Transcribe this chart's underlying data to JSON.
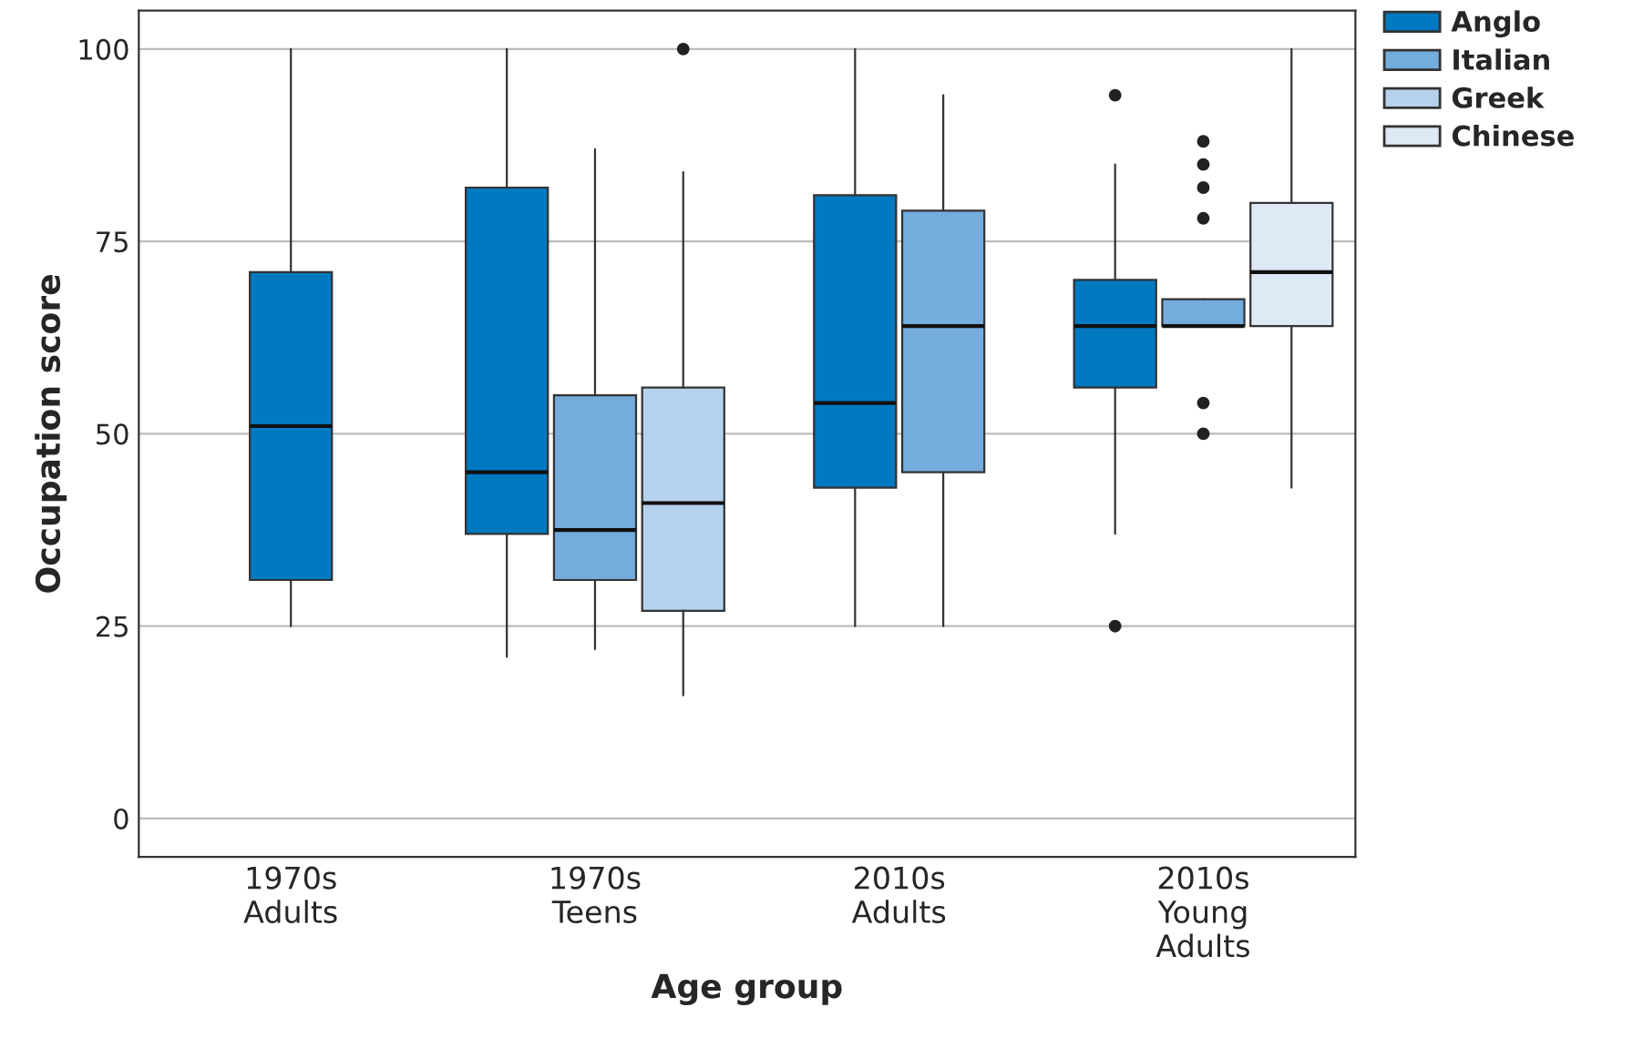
{
  "chart_data": {
    "type": "box",
    "xlabel": "Age group",
    "ylabel": "Occupation score",
    "categories": [
      "1970s\nAdults",
      "1970s\nTeens",
      "2010s\nAdults",
      "2010s\nYoung\nAdults"
    ],
    "ylim": [
      -5,
      105
    ],
    "yticks": [
      0,
      25,
      50,
      75,
      100
    ],
    "grid": "y",
    "legend": "top right",
    "series": [
      {
        "name": "Anglo",
        "color": "#0079c1",
        "boxes": [
          {
            "low": 25,
            "q1": 31,
            "median": 51,
            "q3": 71,
            "high": 100
          },
          {
            "low": 21,
            "q1": 37,
            "median": 45,
            "q3": 82,
            "high": 100
          },
          {
            "low": 25,
            "q1": 43,
            "median": 54,
            "q3": 81,
            "high": 100
          },
          {
            "low": 37,
            "q1": 56,
            "median": 64,
            "q3": 70,
            "high": 85,
            "outliers": [
              94,
              25
            ]
          }
        ]
      },
      {
        "name": "Italian",
        "color": "#74acdc",
        "boxes": [
          null,
          {
            "low": 22,
            "q1": 31,
            "median": 37.5,
            "q3": 55,
            "high": 87
          },
          {
            "low": 25,
            "q1": 45,
            "median": 64,
            "q3": 79,
            "high": 94
          },
          {
            "low": 64,
            "q1": 64,
            "median": 64,
            "q3": 67.5,
            "high": 67.5,
            "outliers": [
              88,
              85,
              82,
              78,
              54,
              50
            ]
          }
        ]
      },
      {
        "name": "Greek",
        "color": "#b5d1ec",
        "boxes": [
          null,
          {
            "low": 16,
            "q1": 27,
            "median": 41,
            "q3": 56,
            "high": 84,
            "outliers": [
              100
            ]
          },
          null,
          null
        ]
      },
      {
        "name": "Chinese",
        "color": "#dee9f6",
        "boxes": [
          null,
          null,
          null,
          {
            "low": 43,
            "q1": 64,
            "median": 71,
            "q3": 80,
            "high": 100
          }
        ]
      }
    ]
  }
}
